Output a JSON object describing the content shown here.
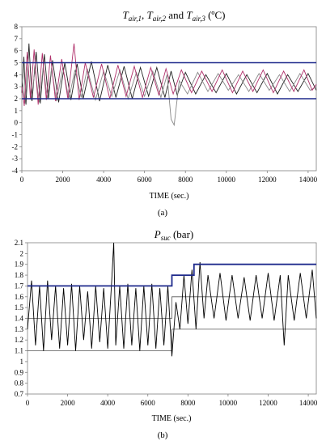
{
  "chart_data": [
    {
      "type": "line",
      "panel_label": "(a)",
      "title_parts": {
        "base": "T",
        "subs": [
          "air,1",
          "air,2",
          "air,3"
        ],
        "sep": ", ",
        "and": " and ",
        "unit": " (ºC)"
      },
      "xlabel": "TIME (sec.)",
      "xlim": [
        0,
        14400
      ],
      "ylim": [
        -4,
        8
      ],
      "xticks": [
        0,
        2000,
        4000,
        6000,
        8000,
        10000,
        12000,
        14000
      ],
      "yticks": [
        -4,
        -3,
        -2,
        -1,
        0,
        1,
        2,
        3,
        4,
        5,
        6,
        7,
        8
      ],
      "grid": false,
      "reference_lines": [
        {
          "y": 5.0,
          "color": "#1f2a8c"
        },
        {
          "y": 2.0,
          "color": "#1f2a8c"
        }
      ],
      "colors": {
        "air1": "#222222",
        "air2": "#888888",
        "air3": "#b0306b"
      },
      "series": [
        {
          "x": [
            0,
            100,
            200,
            350,
            500,
            700,
            900,
            1100,
            1300,
            1500,
            1800,
            2100,
            2400,
            2700,
            3000,
            3400,
            3800,
            4200,
            4600,
            5000,
            5400,
            5800,
            6200,
            6600,
            7000,
            7300,
            7600,
            8000,
            8500,
            9000,
            9500,
            10000,
            10500,
            11000,
            11500,
            12000,
            12500,
            13000,
            13500,
            14000,
            14400
          ],
          "y": [
            2.5,
            5.5,
            1.5,
            6.6,
            1.8,
            5.9,
            1.6,
            5.7,
            2.0,
            5.2,
            1.7,
            5.0,
            1.9,
            4.9,
            2.0,
            5.1,
            1.8,
            4.8,
            2.1,
            4.7,
            2.0,
            4.6,
            2.2,
            4.6,
            2.1,
            4.3,
            2.3,
            4.2,
            2.4,
            4.0,
            2.5,
            4.1,
            2.4,
            4.0,
            2.5,
            4.1,
            2.4,
            4.0,
            2.6,
            4.1,
            2.7
          ]
        },
        {
          "x": [
            0,
            150,
            300,
            450,
            650,
            850,
            1050,
            1250,
            1450,
            1700,
            2000,
            2300,
            2600,
            2900,
            3200,
            3600,
            4000,
            4400,
            4800,
            5200,
            5600,
            6000,
            6400,
            6800,
            7100,
            7300,
            7450,
            7700,
            8100,
            8600,
            9100,
            9600,
            10100,
            10600,
            11100,
            11600,
            12100,
            12600,
            13100,
            13600,
            14100,
            14400
          ],
          "y": [
            4.0,
            1.6,
            4.8,
            1.9,
            4.4,
            1.7,
            4.7,
            2.0,
            4.5,
            1.8,
            4.6,
            2.0,
            4.4,
            2.1,
            4.5,
            1.9,
            4.3,
            2.2,
            4.4,
            2.0,
            4.2,
            2.2,
            4.3,
            2.1,
            4.0,
            0.3,
            -0.2,
            3.5,
            2.4,
            4.2,
            2.6,
            4.1,
            2.7,
            4.0,
            2.6,
            4.1,
            2.7,
            4.0,
            2.6,
            4.1,
            2.7,
            3.0
          ]
        },
        {
          "x": [
            0,
            120,
            260,
            420,
            600,
            800,
            1000,
            1200,
            1400,
            1650,
            1950,
            2250,
            2550,
            2800,
            3100,
            3500,
            3900,
            4300,
            4700,
            5100,
            5500,
            5900,
            6300,
            6700,
            7050,
            7400,
            7800,
            8300,
            8800,
            9300,
            9800,
            10300,
            10800,
            11300,
            11800,
            12300,
            12800,
            13300,
            13800,
            14200,
            14400
          ],
          "y": [
            3.0,
            1.4,
            5.9,
            2.0,
            6.1,
            1.5,
            5.8,
            1.9,
            5.6,
            1.8,
            5.3,
            2.0,
            6.6,
            1.9,
            5.0,
            2.1,
            4.9,
            2.0,
            4.8,
            2.2,
            4.7,
            2.1,
            4.6,
            2.3,
            4.5,
            2.4,
            4.4,
            2.5,
            4.3,
            2.6,
            4.4,
            2.5,
            4.3,
            2.6,
            4.4,
            2.5,
            4.3,
            2.6,
            4.4,
            2.7,
            3.2
          ]
        }
      ]
    },
    {
      "type": "line",
      "panel_label": "(b)",
      "title_parts": {
        "base": "P",
        "sub": "suc",
        "unit": " (bar)"
      },
      "xlabel": "TIME (sec.)",
      "xlim": [
        0,
        14400
      ],
      "ylim": [
        0.7,
        2.1
      ],
      "xticks": [
        0,
        2000,
        4000,
        6000,
        8000,
        10000,
        12000,
        14000
      ],
      "yticks": [
        0.7,
        0.8,
        0.9,
        1.0,
        1.1,
        1.2,
        1.3,
        1.4,
        1.5,
        1.6,
        1.7,
        1.8,
        1.9,
        2.0,
        2.1
      ],
      "ytick_labels": [
        "0.7",
        "0.8",
        "0.9",
        "1",
        "1.1",
        "1.2",
        "1.3",
        "1.4",
        "1.5",
        "1.6",
        "1.7",
        "1.8",
        "1.9",
        "2",
        "2.1"
      ],
      "grid": false,
      "colors": {
        "pressure": "#000000",
        "upper": "#1f2a8c",
        "band": "#555555"
      },
      "upper_limit": {
        "x": [
          0,
          7200,
          7200,
          8300,
          8300,
          14400
        ],
        "y": [
          1.7,
          1.7,
          1.8,
          1.8,
          1.9,
          1.9
        ]
      },
      "lower_band": {
        "x": [
          0,
          7200,
          7200,
          14400
        ],
        "y": [
          1.1,
          1.1,
          1.3,
          1.3
        ]
      },
      "upper_band": {
        "x": [
          0,
          7200,
          7200,
          14400
        ],
        "y": [
          1.4,
          1.4,
          1.6,
          1.6
        ]
      },
      "series": [
        {
          "x": [
            0,
            200,
            400,
            600,
            800,
            1000,
            1200,
            1400,
            1600,
            1800,
            2000,
            2200,
            2400,
            2600,
            2800,
            3000,
            3200,
            3400,
            3600,
            3800,
            4000,
            4200,
            4300,
            4400,
            4600,
            4800,
            5000,
            5200,
            5400,
            5600,
            5800,
            6000,
            6200,
            6400,
            6600,
            6800,
            7000,
            7200,
            7400,
            7600,
            7800,
            8000,
            8200,
            8400,
            8600,
            8800,
            9000,
            9300,
            9600,
            9900,
            10200,
            10500,
            10800,
            11100,
            11400,
            11700,
            12000,
            12300,
            12600,
            12800,
            13000,
            13300,
            13600,
            13900,
            14200,
            14400
          ],
          "y": [
            1.3,
            1.75,
            1.15,
            1.7,
            1.1,
            1.75,
            1.2,
            1.7,
            1.12,
            1.68,
            1.15,
            1.72,
            1.1,
            1.7,
            1.2,
            1.65,
            1.12,
            1.7,
            1.18,
            1.68,
            1.12,
            1.75,
            2.1,
            1.15,
            1.7,
            1.12,
            1.72,
            1.15,
            1.68,
            1.1,
            1.7,
            1.15,
            1.72,
            1.12,
            1.68,
            1.15,
            1.7,
            1.05,
            1.55,
            1.3,
            1.8,
            1.35,
            1.85,
            1.3,
            1.92,
            1.4,
            1.8,
            1.4,
            1.82,
            1.38,
            1.8,
            1.4,
            1.78,
            1.38,
            1.8,
            1.4,
            1.82,
            1.38,
            1.8,
            1.15,
            1.8,
            1.38,
            1.82,
            1.4,
            1.85,
            1.4
          ]
        }
      ]
    }
  ]
}
